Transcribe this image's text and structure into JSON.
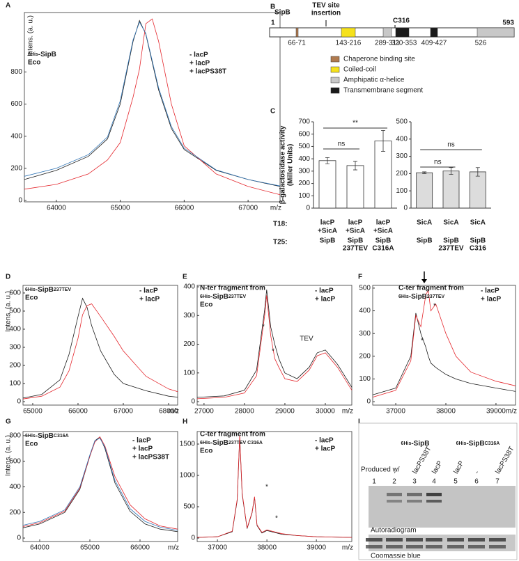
{
  "chart_data": [
    {
      "panel": "A",
      "type": "line",
      "title_parts": [
        {
          "text": "6His",
          "small": true
        },
        {
          "text": "-SipB",
          "small": false
        }
      ],
      "subtitle": "Eco",
      "xlabel": "m/z",
      "ylabel": "Intens. (a. u.)",
      "xlim": [
        63500,
        67500
      ],
      "xticks": [
        64000,
        65000,
        66000,
        67000
      ],
      "ylim": [
        -9,
        1170
      ],
      "yticks": [
        0,
        200,
        400,
        600,
        800
      ],
      "x": [
        63500,
        64000,
        64500,
        64800,
        65000,
        65200,
        65300,
        65400,
        65500,
        65600,
        65800,
        66000,
        66500,
        67000,
        67500
      ],
      "series": [
        {
          "name": "- lacP",
          "color": "#1a1a1a",
          "values": [
            130,
            187,
            274,
            383,
            600,
            990,
            1120,
            1035,
            860,
            687,
            448,
            317,
            187,
            130,
            87
          ]
        },
        {
          "name": "+ lacP",
          "color": "#e4262c",
          "values": [
            70,
            100,
            165,
            252,
            360,
            643,
            817,
            1100,
            1130,
            990,
            600,
            340,
            165,
            87,
            35
          ]
        },
        {
          "name": "+ lacPS38T",
          "color": "#2f74b5",
          "values": [
            150,
            200,
            285,
            395,
            620,
            1000,
            1110,
            1040,
            870,
            700,
            460,
            325,
            190,
            130,
            90
          ]
        }
      ]
    },
    {
      "panel": "C",
      "type": "bar",
      "ylabel": [
        "β-galactosidase activity",
        "(Miller Units)"
      ],
      "color": "#ffffff",
      "ylim": [
        0,
        700
      ],
      "yticks": [
        0,
        100,
        200,
        300,
        400,
        500,
        600,
        700
      ],
      "row_labels": [
        "T18:",
        "T25:"
      ],
      "t18": [
        [
          "lacP",
          "+SicA"
        ],
        [
          "lacP",
          "+SicA"
        ],
        [
          "lacP",
          "+SicA"
        ]
      ],
      "t25": [
        [
          "SipB"
        ],
        [
          "SipB",
          "237TEV"
        ],
        [
          "SipB",
          "C316A"
        ]
      ],
      "values": [
        385,
        345,
        545
      ],
      "errors": [
        25,
        35,
        85
      ],
      "brackets": [
        {
          "label": "ns",
          "between": [
            0,
            1
          ]
        },
        {
          "label": "**",
          "between": [
            0,
            2
          ]
        }
      ]
    },
    {
      "type": "bar",
      "color": "#dcdcdc",
      "ylim": [
        0,
        500
      ],
      "yticks": [
        0,
        100,
        200,
        300,
        400,
        500
      ],
      "t18": [
        [
          "SicA"
        ],
        [
          "SicA"
        ],
        [
          "SicA"
        ]
      ],
      "t25": [
        [
          "SipB"
        ],
        [
          "SipB",
          "237TEV"
        ],
        [
          "SipB",
          "C316"
        ]
      ],
      "values": [
        205,
        215,
        210
      ],
      "errors": [
        5,
        20,
        25
      ],
      "brackets": [
        {
          "label": "ns",
          "between": [
            0,
            1
          ]
        },
        {
          "label": "ns",
          "between": [
            0,
            2
          ]
        }
      ]
    },
    {
      "panel": "D",
      "type": "line",
      "title_parts": [
        {
          "text": "6His",
          "small": true
        },
        {
          "text": "-SipB",
          "small": false
        },
        {
          "text": "237TEV",
          "small": true
        }
      ],
      "subtitle": "Eco",
      "xlabel": "m/z",
      "ylabel": "Intens. (a. u.)",
      "xlim": [
        64785,
        68200
      ],
      "xticks": [
        65000,
        66000,
        67000,
        68000
      ],
      "ylim": [
        -19,
        642
      ],
      "yticks": [
        0,
        100,
        200,
        300,
        400,
        500,
        600
      ],
      "x": [
        64785,
        65200,
        65600,
        65800,
        66000,
        66100,
        66200,
        66300,
        66500,
        66800,
        67000,
        67500,
        68000,
        68200
      ],
      "series": [
        {
          "name": "- lacP",
          "color": "#1a1a1a",
          "values": [
            20,
            40,
            120,
            260,
            470,
            570,
            520,
            420,
            280,
            150,
            100,
            60,
            30,
            25
          ]
        },
        {
          "name": "+ lacP",
          "color": "#e4262c",
          "values": [
            15,
            30,
            80,
            170,
            350,
            480,
            530,
            540,
            470,
            360,
            280,
            140,
            70,
            55
          ]
        }
      ]
    },
    {
      "panel": "E",
      "type": "line",
      "title": "N-ter fragment from",
      "title_parts": [
        {
          "text": "6His",
          "small": true
        },
        {
          "text": "-SipB",
          "small": false
        },
        {
          "text": "237TEV",
          "small": true
        }
      ],
      "subtitle": "Eco",
      "xlabel": "m/z",
      "annotations": [
        "*",
        "*",
        "TEV"
      ],
      "xlim": [
        26830,
        30655
      ],
      "xticks": [
        27000,
        28000,
        29000,
        30000
      ],
      "ylim": [
        -12,
        405
      ],
      "yticks": [
        0,
        100,
        200,
        300,
        400
      ],
      "x": [
        26830,
        27500,
        28000,
        28300,
        28500,
        28550,
        28650,
        28750,
        28850,
        29000,
        29300,
        29600,
        29800,
        30000,
        30300,
        30655
      ],
      "series": [
        {
          "name": "- lacP",
          "color": "#1a1a1a",
          "values": [
            15,
            20,
            40,
            110,
            320,
            390,
            260,
            200,
            150,
            100,
            80,
            120,
            170,
            180,
            130,
            50
          ]
        },
        {
          "name": "+ lacP",
          "color": "#e4262c",
          "values": [
            10,
            15,
            30,
            90,
            300,
            370,
            230,
            150,
            120,
            80,
            70,
            110,
            160,
            170,
            120,
            40
          ]
        }
      ]
    },
    {
      "panel": "F",
      "type": "line",
      "title": "C-ter fragment from",
      "title_parts": [
        {
          "text": "6His",
          "small": true
        },
        {
          "text": "-SipB",
          "small": false
        },
        {
          "text": "237TEV",
          "small": true
        }
      ],
      "xlabel": "m/z",
      "annotations": [
        "*",
        "*"
      ],
      "xlim": [
        36540,
        39390
      ],
      "xticks": [
        37000,
        38000,
        39000
      ],
      "ylim": [
        -15,
        512
      ],
      "yticks": [
        0,
        100,
        200,
        300,
        400,
        500
      ],
      "x": [
        36540,
        37000,
        37300,
        37400,
        37500,
        37600,
        37650,
        37700,
        37800,
        38000,
        38200,
        38500,
        39000,
        39390
      ],
      "series": [
        {
          "name": "- lacP",
          "color": "#1a1a1a",
          "values": [
            30,
            60,
            200,
            390,
            300,
            240,
            200,
            170,
            150,
            120,
            100,
            80,
            60,
            45
          ]
        },
        {
          "name": "+ lacP",
          "color": "#e4262c",
          "values": [
            20,
            50,
            180,
            380,
            330,
            470,
            490,
            400,
            430,
            300,
            200,
            130,
            90,
            70
          ]
        }
      ]
    },
    {
      "panel": "G",
      "type": "line",
      "title_parts": [
        {
          "text": "6His",
          "small": true
        },
        {
          "text": "-SipB",
          "small": false
        },
        {
          "text": "C316A",
          "small": true
        }
      ],
      "subtitle": "Eco",
      "xlabel": "m/z",
      "ylabel": "Intens. (a. u.)",
      "xlim": [
        63667,
        66750
      ],
      "xticks": [
        64000,
        65000,
        66000
      ],
      "ylim": [
        -27,
        832
      ],
      "yticks": [
        0,
        200,
        400,
        600,
        800
      ],
      "x": [
        63667,
        64000,
        64500,
        64800,
        65000,
        65100,
        65200,
        65300,
        65500,
        65800,
        66100,
        66400,
        66750
      ],
      "series": [
        {
          "name": "- lacP",
          "color": "#1a1a1a",
          "values": [
            80,
            110,
            200,
            380,
            640,
            760,
            790,
            700,
            430,
            210,
            110,
            70,
            50
          ]
        },
        {
          "name": "+ lacP",
          "color": "#e4262c",
          "values": [
            90,
            120,
            210,
            390,
            640,
            750,
            790,
            720,
            480,
            260,
            150,
            95,
            70
          ]
        },
        {
          "name": "+ lacPS38T",
          "color": "#2f74b5",
          "values": [
            100,
            130,
            220,
            400,
            650,
            760,
            780,
            710,
            450,
            230,
            130,
            85,
            60
          ]
        }
      ]
    },
    {
      "panel": "H",
      "type": "line",
      "title": "C-ter fragment from",
      "title_parts": [
        {
          "text": "6His",
          "small": true
        },
        {
          "text": "-SipB",
          "small": false
        },
        {
          "text": "237TEV C316A",
          "small": true
        }
      ],
      "subtitle": "Eco",
      "xlabel": "m/z",
      "annotations": [
        "*",
        "*"
      ],
      "xlim": [
        36590,
        39716
      ],
      "xticks": [
        37000,
        38000,
        39000
      ],
      "ylim": [
        -55,
        1700
      ],
      "yticks": [
        0,
        500,
        1000,
        1500
      ],
      "x": [
        36590,
        37000,
        37300,
        37400,
        37450,
        37500,
        37600,
        37700,
        37750,
        37800,
        37900,
        38000,
        38300,
        38600,
        39000,
        39716
      ],
      "series": [
        {
          "name": "- lacP",
          "color": "#1a1a1a",
          "values": [
            10,
            20,
            100,
            600,
            1620,
            700,
            150,
            400,
            650,
            200,
            80,
            120,
            60,
            40,
            20,
            10
          ]
        },
        {
          "name": "+ lacP",
          "color": "#e4262c",
          "values": [
            10,
            20,
            110,
            620,
            1640,
            720,
            160,
            410,
            660,
            210,
            90,
            130,
            70,
            40,
            20,
            10
          ]
        }
      ]
    }
  ],
  "diagram": {
    "panel": "B",
    "protein": "SipB",
    "start": 1,
    "end": 593,
    "insertion": [
      "TEV site",
      "insertion"
    ],
    "site": "C316",
    "regions": [
      "66-71",
      "143-216",
      "289-311",
      "320-353",
      "409-427",
      "526"
    ],
    "legend": [
      "Chaperone binding site",
      "Coiled-coil",
      "Amphipatic α-helice",
      "Transmembrane segment"
    ]
  },
  "gel": {
    "panel": "I",
    "groups": [
      [
        {
          "text": "6His",
          "small": true
        },
        {
          "text": "-SipB",
          "small": false
        }
      ],
      [
        {
          "text": "6His",
          "small": true
        },
        {
          "text": "-SipB",
          "small": false
        },
        {
          "text": "C316A",
          "small": true
        }
      ]
    ],
    "produced": "Produced w/",
    "lanes": [
      null,
      "-",
      "lacPS38T",
      "lacP",
      "lacP",
      "-",
      "lacPS38T"
    ],
    "lane_numbers": [
      1,
      2,
      3,
      4,
      5,
      6,
      7
    ],
    "panels": [
      "Autoradiogram",
      "Coomassie blue"
    ]
  }
}
